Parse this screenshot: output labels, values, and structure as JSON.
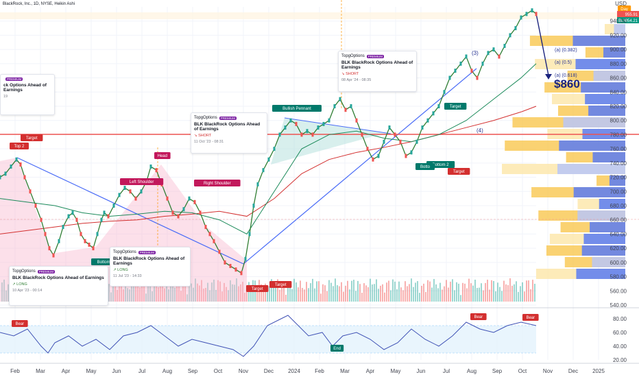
{
  "legend": "BlackRock, Inc., 1D, NYSE, Heikin Ashi",
  "currency": "USD",
  "price_tags": {
    "ticker_tag": "BLK",
    "last_price": "954.21",
    "high_price": "955.91",
    "top_tag": "Day"
  },
  "target_text": "$860",
  "fib_labels": [
    "(a) (0.382)",
    "(a) (0.5)",
    "(a) (0.618)"
  ],
  "wave_labels": [
    "(3)",
    "(4)"
  ],
  "pattern_labels": {
    "left_shoulder": "Left Shoulder",
    "head": "Head",
    "right_shoulder": "Right Shoulder",
    "bullish_pennant": "Bullish Pennant",
    "bottom2_a": "Bottom 2",
    "bottom2_b": "Bottom 2",
    "bottom": "Botto",
    "top2": "Top 2",
    "end": "End",
    "bear1": "Bear",
    "bear2": "Bear",
    "bear3": "Bear",
    "target1": "Target",
    "target2": "Target",
    "target3": "Target",
    "target4": "Target",
    "target5": "Target"
  },
  "cards": [
    {
      "brand": "TopgOptions",
      "badge": "PREMIUM",
      "title": "BLK BlackRock Options Ahead of Earnings",
      "dir": "↗ LONG",
      "dir_class": "long",
      "date": "10 Apr '23 - 00:14"
    },
    {
      "brand": "TopgOptions",
      "badge": "PREMIUM",
      "title": "BLK BlackRock Options Ahead of Earnings",
      "dir": "↗ LONG",
      "dir_class": "long",
      "date": "11 Jul '23 - 14:33"
    },
    {
      "brand": "TopgOptions",
      "badge": "PREMIUM",
      "title": "BLK BlackRock Options Ahead of Earnings",
      "dir": "↘ SHORT",
      "dir_class": "short",
      "date": "11 Oct '23 - 08:31"
    },
    {
      "brand": "TopgOptions",
      "badge": "PREMIUM",
      "title": "BLK BlackRock Options Ahead of Earnings",
      "dir": "↘ SHORT",
      "dir_class": "short",
      "date": "08 Apr '24 - 08:35"
    },
    {
      "brand": "",
      "badge": "PREMIUM",
      "title": "ck Options Ahead of Earnings",
      "dir": "",
      "dir_class": "short",
      "date": "19"
    }
  ],
  "chart_data": {
    "type": "line",
    "price_axis": {
      "min": 540,
      "max": 960,
      "ticks": [
        540,
        560,
        580,
        600,
        620,
        640,
        660,
        680,
        700,
        720,
        740,
        760,
        780,
        800,
        820,
        840,
        860,
        880,
        900,
        920,
        940
      ]
    },
    "rsi_axis": {
      "min": 20,
      "max": 90,
      "ticks": [
        20,
        40,
        60,
        80
      ]
    },
    "x_ticks": [
      "Feb",
      "Mar",
      "Apr",
      "May",
      "Jun",
      "Jul",
      "Aug",
      "Sep",
      "Oct",
      "Nov",
      "Dec",
      "2024",
      "Feb",
      "Mar",
      "Apr",
      "May",
      "Jun",
      "Jul",
      "Aug",
      "Sep",
      "Oct",
      "Nov",
      "Dec",
      "2025"
    ],
    "price_series": {
      "x": [
        0,
        8,
        16,
        24,
        30,
        36,
        44,
        52,
        60,
        66,
        72,
        78,
        86,
        92,
        100,
        106,
        112,
        118,
        124,
        130,
        136,
        142,
        148,
        152,
        158,
        166,
        174,
        182,
        190,
        198,
        206,
        214,
        220,
        228,
        236,
        244,
        252,
        260,
        268,
        276,
        284,
        292,
        300,
        306,
        312,
        320,
        328,
        336,
        344,
        352,
        358,
        364,
        370,
        376,
        384,
        392,
        400,
        408,
        416,
        424,
        432,
        440,
        448,
        456,
        464,
        472,
        480,
        488,
        496,
        504,
        512,
        520,
        528,
        536,
        544,
        552,
        560,
        568,
        576,
        584,
        592,
        600,
        608,
        616,
        624,
        632,
        640,
        648,
        656,
        664,
        672,
        680,
        688,
        696,
        704,
        712,
        720,
        728,
        736,
        744,
        752,
        760,
        768,
        776,
        782
      ],
      "y": [
        720,
        725,
        735,
        745,
        738,
        720,
        700,
        680,
        660,
        640,
        620,
        610,
        630,
        650,
        665,
        670,
        660,
        640,
        630,
        625,
        620,
        640,
        660,
        670,
        665,
        680,
        695,
        705,
        700,
        690,
        700,
        715,
        735,
        730,
        710,
        690,
        670,
        665,
        675,
        690,
        685,
        670,
        650,
        640,
        630,
        615,
        600,
        595,
        590,
        585,
        605,
        640,
        680,
        710,
        730,
        745,
        760,
        780,
        790,
        800,
        795,
        780,
        785,
        780,
        790,
        795,
        800,
        820,
        830,
        815,
        820,
        800,
        780,
        760,
        745,
        750,
        770,
        790,
        780,
        770,
        750,
        755,
        770,
        790,
        800,
        810,
        820,
        840,
        860,
        870,
        880,
        890,
        870,
        860,
        880,
        895,
        900,
        890,
        905,
        920,
        930,
        945,
        950,
        955,
        950
      ]
    },
    "ma_green": {
      "x": [
        0,
        40,
        80,
        120,
        160,
        200,
        240,
        280,
        320,
        360,
        400,
        440,
        480,
        520,
        560,
        600,
        640,
        680,
        720,
        760,
        782
      ],
      "y": [
        690,
        685,
        680,
        670,
        665,
        668,
        672,
        670,
        660,
        640,
        700,
        760,
        780,
        785,
        775,
        770,
        780,
        800,
        830,
        860,
        880
      ]
    },
    "ma_red": {
      "x": [
        0,
        40,
        80,
        120,
        160,
        200,
        240,
        280,
        320,
        360,
        400,
        440,
        480,
        520,
        560,
        600,
        640,
        680,
        720,
        760,
        782
      ],
      "y": [
        640,
        645,
        650,
        655,
        658,
        660,
        665,
        668,
        672,
        665,
        690,
        725,
        745,
        755,
        762,
        770,
        780,
        790,
        800,
        812,
        820
      ]
    },
    "rsi": {
      "x": [
        0,
        20,
        40,
        60,
        70,
        80,
        100,
        120,
        140,
        160,
        180,
        200,
        220,
        240,
        260,
        280,
        300,
        320,
        340,
        355,
        370,
        390,
        410,
        420,
        430,
        450,
        470,
        485,
        500,
        520,
        540,
        560,
        580,
        600,
        620,
        640,
        660,
        680,
        700,
        720,
        740,
        760,
        782
      ],
      "y": [
        60,
        55,
        65,
        40,
        30,
        45,
        55,
        40,
        50,
        35,
        55,
        60,
        70,
        55,
        40,
        50,
        45,
        40,
        35,
        25,
        40,
        70,
        80,
        85,
        75,
        55,
        60,
        40,
        55,
        60,
        50,
        35,
        45,
        65,
        50,
        40,
        55,
        75,
        65,
        60,
        70,
        75,
        70
      ]
    }
  }
}
